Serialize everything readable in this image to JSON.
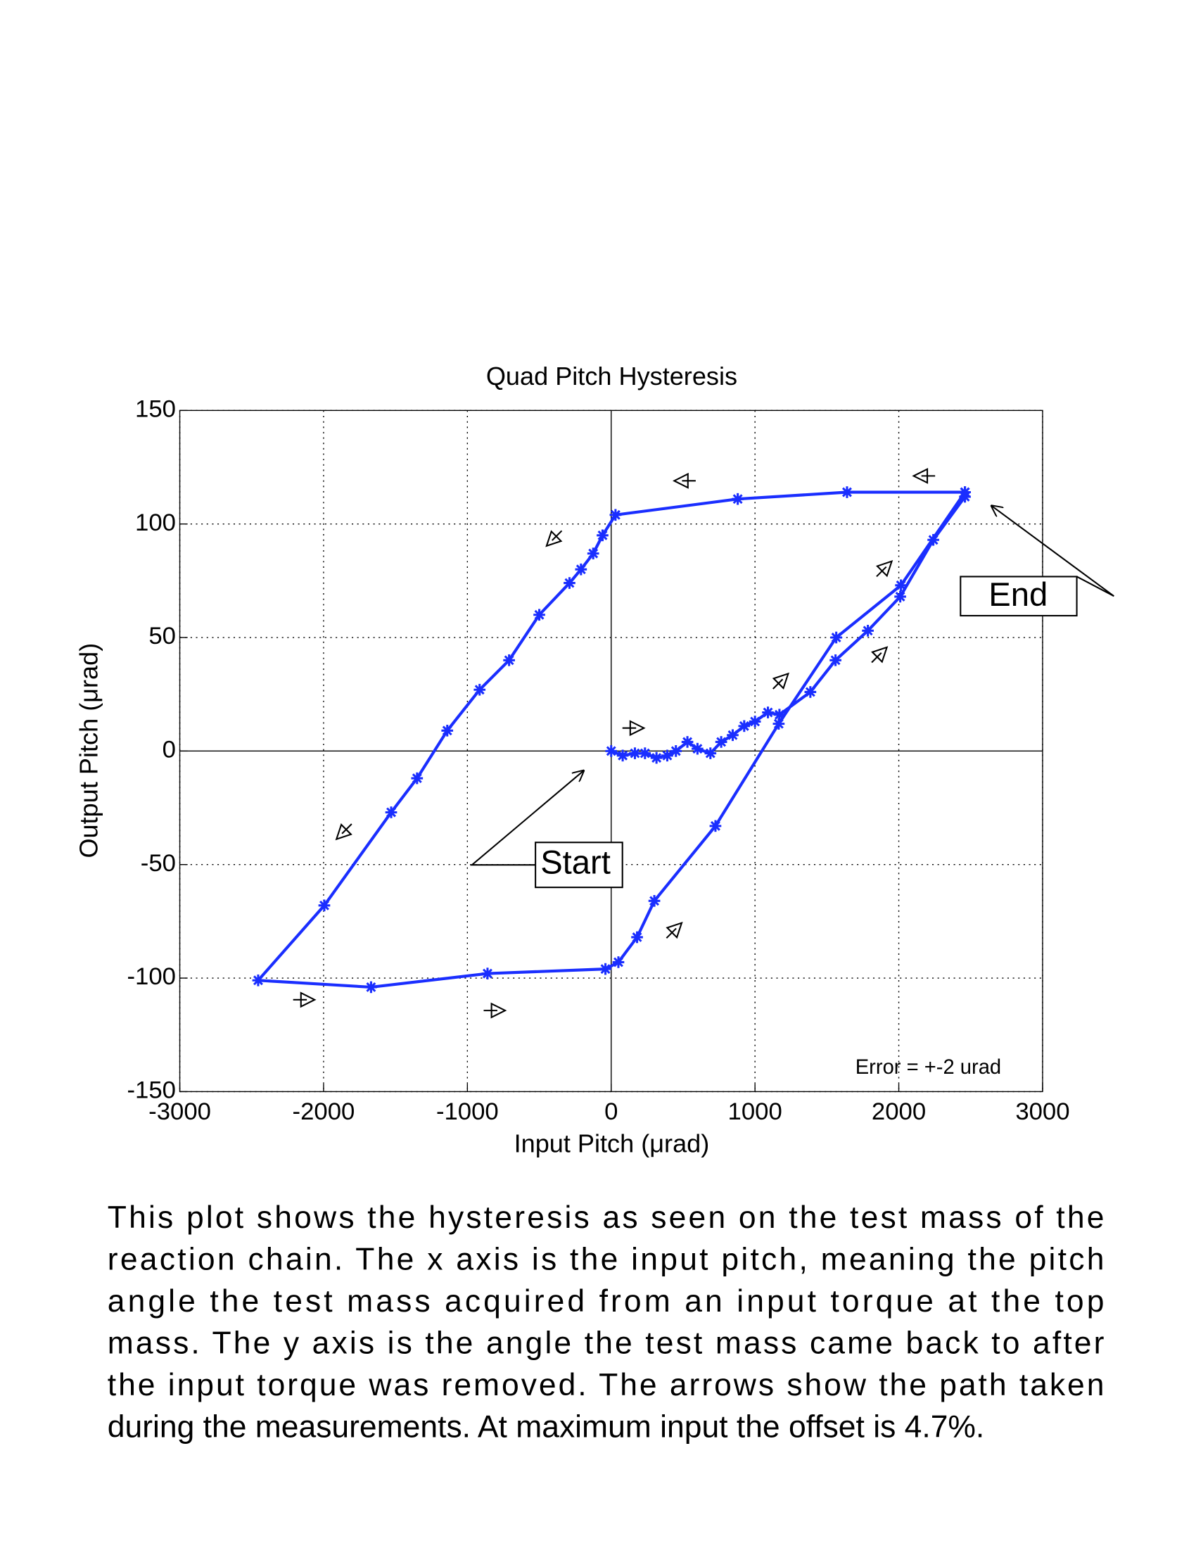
{
  "chart_data": {
    "type": "line",
    "title": "Quad Pitch Hysteresis",
    "x_label": "Input Pitch (μrad)",
    "y_label": "Output Pitch (μrad)",
    "xlim": [
      -3000,
      3000
    ],
    "ylim": [
      -150,
      150
    ],
    "xticks": [
      -3000,
      -2000,
      -1000,
      0,
      1000,
      2000,
      3000
    ],
    "yticks": [
      -150,
      -100,
      -50,
      0,
      50,
      100,
      150
    ],
    "grid": true,
    "series": [
      {
        "color": "#1a2eff",
        "x": [
          0,
          80,
          165,
          235,
          315,
          390,
          450,
          530,
          600,
          690,
          765,
          845,
          925,
          1000,
          1090,
          1170,
          1385,
          1560,
          1785,
          2010,
          2240,
          2460,
          2460,
          1640,
          880,
          30,
          -60,
          -125,
          -210,
          -290,
          -500,
          -710,
          -915,
          -1140,
          -1350,
          -1530,
          -1995,
          -2455,
          -1670,
          -860,
          -40,
          50,
          180,
          300,
          725,
          1165,
          1565,
          2015,
          2460
        ],
        "values": [
          0,
          -2,
          -1,
          -1,
          -3,
          -2,
          0,
          4,
          1,
          -1,
          4,
          7,
          11,
          13,
          17,
          16,
          26,
          40,
          53,
          68,
          93,
          112,
          114,
          114,
          111,
          104,
          95,
          87,
          80,
          74,
          60,
          40,
          27,
          9,
          -12,
          -27,
          -68,
          -101,
          -104,
          -98,
          -96,
          -93,
          -82,
          -66,
          -33,
          12,
          50,
          73,
          114
        ]
      }
    ],
    "annotations": [
      "Start",
      "End",
      "Error = +-2 urad"
    ],
    "caption": [
      "This plot shows the hysteresis as seen on the test mass of the",
      "reaction chain. The x axis is the input pitch, meaning the pitch",
      "angle the test mass acquired from an input torque at the top",
      "mass. The y axis is the angle the test mass came back to after",
      "the input torque was removed. The arrows show the path taken",
      "during the measurements. At maximum input the offset is 4.7%."
    ]
  }
}
